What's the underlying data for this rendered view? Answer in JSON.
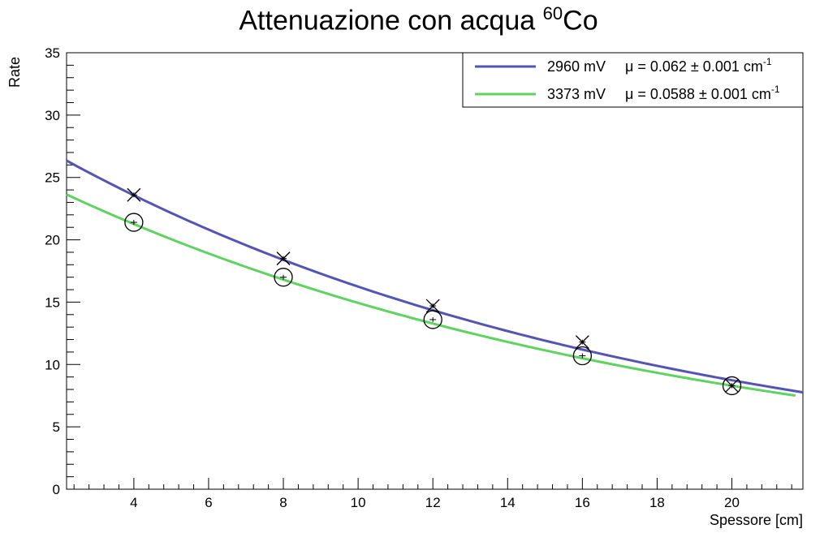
{
  "chart_data": {
    "type": "scatter",
    "title_text": "Attenuazione con acqua ",
    "title_sup": "60",
    "title_suffix": "Co",
    "xlabel": "Spessore [cm]",
    "ylabel": "Rate",
    "xlim": [
      2.2,
      21.9
    ],
    "ylim": [
      0,
      35
    ],
    "x_ticks": [
      4,
      6,
      8,
      10,
      12,
      14,
      16,
      18,
      20
    ],
    "y_ticks": [
      0,
      5,
      10,
      15,
      20,
      25,
      30,
      35
    ],
    "grid": false,
    "legend_position": "top-right",
    "series": [
      {
        "name": "2960 mV",
        "legend_mu": "μ = 0.062 ± 0.001 cm",
        "legend_exp": "-1",
        "color": "#5454b4",
        "marker": "x",
        "x": [
          4,
          8,
          12,
          16,
          20
        ],
        "y": [
          23.6,
          18.5,
          14.7,
          11.8,
          8.3
        ],
        "fit": {
          "A": 30.2,
          "mu": 0.062,
          "x_range": [
            2.2,
            21.9
          ]
        }
      },
      {
        "name": "3373 mV",
        "legend_mu": "μ = 0.0588 ± 0.001 cm",
        "legend_exp": "-1",
        "color": "#5fd35f",
        "marker": "circle",
        "x": [
          4,
          8,
          12,
          16,
          20
        ],
        "y": [
          21.4,
          17.0,
          13.6,
          10.7,
          8.3
        ],
        "fit": {
          "A": 26.9,
          "mu": 0.0588,
          "x_range": [
            2.2,
            21.7
          ]
        }
      }
    ]
  }
}
